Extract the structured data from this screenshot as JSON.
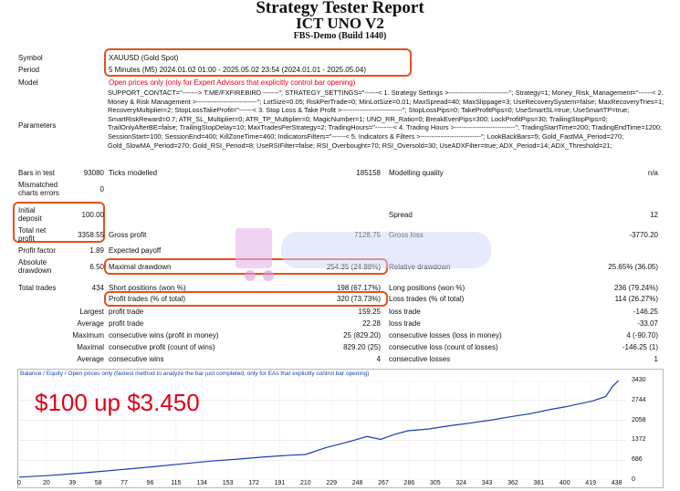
{
  "header": {
    "title": "Strategy Tester Report",
    "subtitle": "ICT UNO V2",
    "server": "FBS-Demo (Build 1440)"
  },
  "info": {
    "symbol_label": "Symbol",
    "symbol_value": "XAUUSD (Gold Spot)",
    "period_label": "Period",
    "period_value": "5 Minutes (M5) 2024.01.02 01:00 - 2025.05.02 23:54 (2024.01.01 - 2025.05.04)",
    "model_label": "Model",
    "model_value": "Open prices only (only for Expert Advisors that explicitly control bar opening)",
    "parameters_label": "Parameters",
    "parameters_value": "SUPPORT_CONTACT=\"-------> T.ME/FXFIREBIRD -------\"; STRATEGY_SETTINGS=\"------< 1. Strategy Settings >---------------------------\"; Strategy=1; Money_Risk_Management=\"------< 2. Money & Risk Management >---------------------------\"; LotSize=0.05; RiskPerTrade=0; MinLotSize=0.01; MaxSpread=40; MaxSlippage=3; UseRecoverySystem=false; MaxRecoveryTries=1; RecoveryMultiplier=2; StopLossTakeProfit=\"------< 3. Stop Loss & Take Profit >---------------------------\"; StopLossPips=0; TakeProfitPips=0; UseSmartSL=true; UseSmartTP=true; SmartRiskReward=0.7; ATR_SL_Multiplier=0; ATR_TP_Multiplier=0; MagicNumber=1; UNO_RR_Ratio=0; BreakEvenPips=300; LockProfitPips=30; TrailingStopPips=0; TrailOnlyAfterBE=false; TrailingStopDelay=10; MaxTradesPerStrategy=2; TradingHours=\"--------< 4. Trading Hours >---------------------------\"; TradingStartTime=200; TradingEndTime=1200; SessionStart=100; SessionEnd=400; KillZoneTime=460; IndicatorsFilters=\"------< 5. Indicators & Filters >---------------------------\"; LookBackBars=5; Gold_FastMA_Period=270; Gold_SlowMA_Period=270; Gold_RSI_Period=8; UseRSIFilter=false; RSI_Overbought=70; RSI_Oversold=30; UseADXFilter=true; ADX_Period=14; ADX_Threshold=21;"
  },
  "stats": {
    "bars_label": "Bars in test",
    "bars_value": "93080",
    "ticks_label": "Ticks modelled",
    "ticks_value": "185158",
    "quality_label": "Modelling quality",
    "quality_value": "n/a",
    "mismatch_label_1": "Mismatched",
    "mismatch_label_2": "charts errors",
    "mismatch_value": "0",
    "deposit_label_1": "Initial",
    "deposit_label_2": "deposit",
    "deposit_value": "100.00",
    "spread_label": "Spread",
    "spread_value": "12",
    "netprofit_label_1": "Total net",
    "netprofit_label_2": "profit",
    "netprofit_value": "3358.55",
    "grossprofit_label": "Gross profit",
    "grossprofit_value": "7128.75",
    "grossloss_label": "Gross loss",
    "grossloss_value": "-3770.20",
    "pf_label": "Profit factor",
    "pf_value": "1.89",
    "payoff_label": "Expected payoff",
    "payoff_value": "",
    "absdd_label_1": "Absolute",
    "absdd_label_2": "drawdown",
    "absdd_value": "6.50",
    "maxdd_label": "Maximal drawdown",
    "maxdd_value": "254.35 (24.88%)",
    "reldd_label": "Relative drawdown",
    "reldd_value": "25.65% (36.05)",
    "trades_label": "Total trades",
    "trades_value": "434",
    "short_label": "Short positions (won %)",
    "short_value": "198 (67.17%)",
    "long_label": "Long positions (won %)",
    "long_value": "236 (79.24%)",
    "profit_trades_label": "Profit trades (% of total)",
    "profit_trades_value": "320 (73.73%)",
    "loss_trades_label": "Loss trades (% of total)",
    "loss_trades_value": "114 (26.27%)"
  },
  "rows": [
    {
      "l1": "Largest",
      "l2": "profit trade",
      "v1": "159.25",
      "l3": "loss trade",
      "v2": "-146.25"
    },
    {
      "l1": "Average",
      "l2": "profit trade",
      "v1": "22.28",
      "l3": "loss trade",
      "v2": "-33.07"
    },
    {
      "l1": "Maximum",
      "l2": "consecutive wins (profit in money)",
      "v1": "25 (829.20)",
      "l3": "consecutive losses (loss in money)",
      "v2": "4 (-90.70)"
    },
    {
      "l1": "Maximal",
      "l2": "consecutive profit (count of wins)",
      "v1": "829.20 (25)",
      "l3": "consecutive loss (count of losses)",
      "v2": "-146.25 (1)"
    },
    {
      "l1": "Average",
      "l2": "consecutive wins",
      "v1": "4",
      "l3": "consecutive losses",
      "v2": "1"
    }
  ],
  "overlay_text": "$100 up $3.450",
  "chart_data": {
    "type": "line",
    "legend": "Balance / Equity / Open prices only (fastest method to analyze the bar just completed, only for EAs that explicitly control bar opening)",
    "y_ticks": [
      "3430",
      "2744",
      "2058",
      "1372",
      "686",
      "0"
    ],
    "x_ticks": [
      "0",
      "20",
      "39",
      "58",
      "77",
      "96",
      "115",
      "134",
      "153",
      "172",
      "191",
      "210",
      "229",
      "248",
      "267",
      "286",
      "305",
      "324",
      "343",
      "362",
      "381",
      "400",
      "419",
      "438"
    ],
    "ylim": [
      0,
      3430
    ],
    "xlim": [
      0,
      445
    ],
    "series": [
      {
        "color": "#1a3fb0",
        "x": [
          0,
          20,
          40,
          60,
          80,
          100,
          120,
          140,
          160,
          180,
          200,
          210,
          225,
          240,
          255,
          265,
          275,
          285,
          300,
          315,
          330,
          345,
          360,
          375,
          390,
          400,
          410,
          420,
          430,
          435,
          440
        ],
        "y": [
          100,
          150,
          220,
          300,
          380,
          470,
          560,
          650,
          720,
          800,
          860,
          880,
          1120,
          1300,
          1500,
          1400,
          1570,
          1700,
          1760,
          1870,
          1960,
          2060,
          2180,
          2290,
          2440,
          2520,
          2620,
          2720,
          2880,
          3230,
          3458
        ]
      }
    ]
  },
  "colors": {
    "accent_red": "#e0001a",
    "box_orange": "#e8501c",
    "balance_blue": "#1a3fb0"
  }
}
